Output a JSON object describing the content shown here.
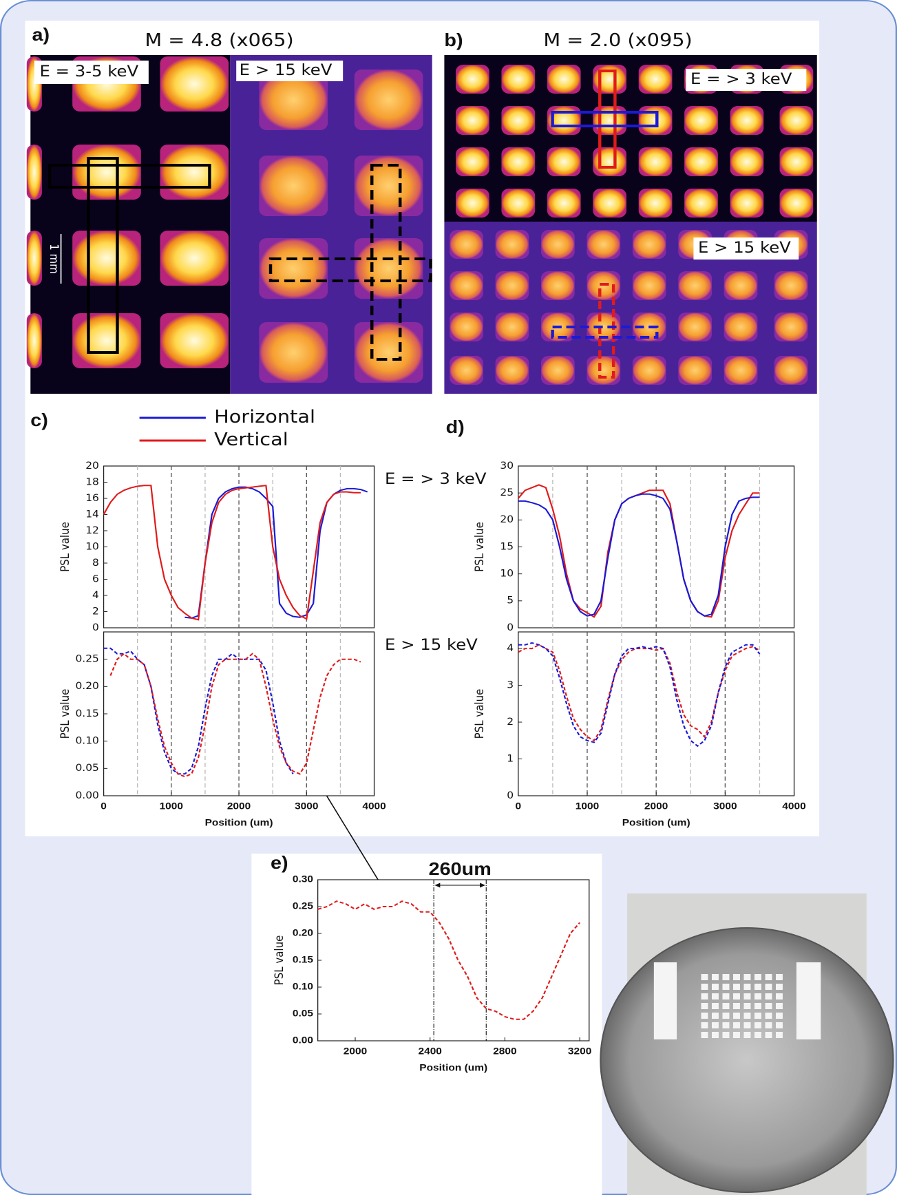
{
  "panels": {
    "a": {
      "label": "a)",
      "title": "M = 4.8 (x065)",
      "left_energy": "E = 3-5 keV",
      "right_energy": "E > 15 keV",
      "scale": "1 mm"
    },
    "b": {
      "label": "b)",
      "title": "M = 2.0 (x095)",
      "top_energy": "E = > 3 keV",
      "bottom_energy": "E > 15 keV"
    },
    "c": {
      "label": "c)"
    },
    "d": {
      "label": "d)"
    },
    "e": {
      "label": "e)"
    }
  },
  "chart_data": [
    {
      "type": "line",
      "ylabel": "PSL value",
      "annotation": "E = > 3 keV",
      "x": [
        0,
        100,
        200,
        300,
        400,
        500,
        600,
        700,
        800,
        900,
        1000,
        1100,
        1200,
        1300,
        1400,
        1500,
        1600,
        1700,
        1800,
        1900,
        2000,
        2100,
        2200,
        2300,
        2400,
        2500,
        2600,
        2700,
        2800,
        2900,
        3000,
        3100,
        3200,
        3300,
        3400,
        3500,
        3600,
        3700,
        3800,
        3900
      ],
      "xlim": [
        0,
        4000
      ],
      "ylim": [
        0,
        20
      ],
      "yticks": [
        0,
        2,
        4,
        6,
        8,
        10,
        12,
        14,
        16,
        18,
        20
      ],
      "vlines": [
        500,
        1000,
        1500,
        2000,
        2500,
        3000,
        3500
      ],
      "series": [
        {
          "name": "Horizontal",
          "color": "#1a1ad8",
          "values": [
            null,
            null,
            null,
            null,
            null,
            null,
            null,
            null,
            null,
            null,
            null,
            null,
            1.3,
            1.2,
            1.5,
            8,
            14,
            16,
            16.8,
            17.2,
            17.4,
            17.4,
            17.2,
            16.8,
            16,
            15,
            3,
            1.8,
            1.4,
            1.3,
            1.6,
            3,
            12,
            15.5,
            16.5,
            17,
            17.2,
            17.2,
            17.1,
            16.8
          ]
        },
        {
          "name": "Vertical",
          "color": "#e01b1b",
          "values": [
            14,
            15.5,
            16.5,
            17,
            17.3,
            17.5,
            17.6,
            17.6,
            10,
            6,
            4,
            2.5,
            1.8,
            1.2,
            1,
            8,
            13,
            15.5,
            16.5,
            17,
            17.2,
            17.3,
            17.4,
            17.5,
            17.6,
            10,
            6,
            4,
            2.5,
            1.5,
            1.1,
            7,
            13,
            15.5,
            16.5,
            16.8,
            16.8,
            16.7,
            16.7,
            null
          ]
        }
      ]
    },
    {
      "type": "line",
      "ylabel": "PSL value",
      "xlabel": "Position (um)",
      "annotation": "E > 15 keV",
      "x": [
        0,
        100,
        200,
        300,
        400,
        500,
        600,
        700,
        800,
        900,
        1000,
        1100,
        1200,
        1300,
        1400,
        1500,
        1600,
        1700,
        1800,
        1900,
        2000,
        2100,
        2200,
        2300,
        2400,
        2500,
        2600,
        2700,
        2800,
        2900,
        3000,
        3100,
        3200,
        3300,
        3400,
        3500,
        3600,
        3700,
        3800,
        3900
      ],
      "xlim": [
        0,
        4000
      ],
      "ylim": [
        0,
        0.3
      ],
      "yticks": [
        {
          "value": 0,
          "label": "0.00"
        },
        0.05,
        {
          "value": 0.1,
          "label": "0.10"
        },
        0.15,
        {
          "value": 0.2,
          "label": "0.20"
        },
        0.25
      ],
      "xticks": [
        0,
        1000,
        2000,
        3000,
        4000
      ],
      "vlines": [
        500,
        1000,
        1500,
        2000,
        2500,
        3000,
        3500
      ],
      "series": [
        {
          "color": "#1a1ad8",
          "dash": true,
          "values": [
            0.27,
            0.27,
            0.26,
            0.26,
            0.265,
            0.25,
            0.24,
            0.2,
            0.13,
            0.08,
            0.05,
            0.04,
            0.04,
            0.05,
            0.09,
            0.16,
            0.22,
            0.25,
            0.25,
            0.26,
            0.25,
            0.25,
            0.25,
            0.25,
            0.23,
            0.17,
            0.1,
            0.06,
            0.04,
            null,
            null,
            null,
            null,
            null,
            null,
            null,
            null,
            null,
            null,
            null
          ]
        },
        {
          "color": "#e01b1b",
          "dash": true,
          "values": [
            null,
            0.22,
            0.25,
            0.26,
            0.25,
            0.25,
            0.24,
            0.2,
            0.14,
            0.09,
            0.06,
            0.04,
            0.035,
            0.04,
            0.07,
            0.13,
            0.2,
            0.24,
            0.25,
            0.25,
            0.25,
            0.25,
            0.26,
            0.25,
            0.2,
            0.14,
            0.09,
            0.06,
            0.045,
            0.04,
            0.06,
            0.12,
            0.18,
            0.22,
            0.24,
            0.25,
            0.25,
            0.25,
            0.245,
            null
          ]
        }
      ]
    },
    {
      "type": "line",
      "ylabel": "PSL value",
      "x": [
        0,
        100,
        200,
        300,
        400,
        500,
        600,
        700,
        800,
        900,
        1000,
        1100,
        1200,
        1300,
        1400,
        1500,
        1600,
        1700,
        1800,
        1900,
        2000,
        2100,
        2200,
        2300,
        2400,
        2500,
        2600,
        2700,
        2800,
        2900,
        3000,
        3100,
        3200,
        3300,
        3400,
        3500
      ],
      "xlim": [
        0,
        4000
      ],
      "ylim": [
        0,
        30
      ],
      "yticks": [
        0,
        5,
        10,
        15,
        20,
        25,
        30
      ],
      "vlines": [
        500,
        1000,
        1500,
        2000,
        2500,
        3000,
        3500
      ],
      "series": [
        {
          "color": "#e01b1b",
          "values": [
            24,
            25.5,
            26,
            26.5,
            26,
            22,
            17,
            10,
            5,
            3.5,
            2.8,
            2,
            4,
            14,
            20,
            23,
            24,
            24.5,
            25,
            25.5,
            25.5,
            25.5,
            23,
            16,
            9,
            5,
            3,
            2.2,
            2,
            5,
            13,
            18,
            21,
            23,
            25,
            25
          ]
        },
        {
          "color": "#1a1ad8",
          "values": [
            23.5,
            23.5,
            23.2,
            22.8,
            22,
            20,
            15,
            9,
            5,
            3,
            2.2,
            2.5,
            5,
            13,
            20,
            23,
            24,
            24.5,
            24.8,
            24.8,
            24.5,
            24,
            22,
            16,
            9,
            5,
            3,
            2.2,
            2.5,
            6,
            15,
            21,
            23.5,
            24,
            24.2,
            24.2
          ]
        }
      ]
    },
    {
      "type": "line",
      "ylabel": "PSL value",
      "xlabel": "Position (um)",
      "x": [
        0,
        100,
        200,
        300,
        400,
        500,
        600,
        700,
        800,
        900,
        1000,
        1100,
        1200,
        1300,
        1400,
        1500,
        1600,
        1700,
        1800,
        1900,
        2000,
        2100,
        2200,
        2300,
        2400,
        2500,
        2600,
        2700,
        2800,
        2900,
        3000,
        3100,
        3200,
        3300,
        3400,
        3500
      ],
      "xlim": [
        0,
        4000
      ],
      "ylim": [
        0,
        4.45
      ],
      "yticks": [
        0,
        1,
        2,
        3,
        4
      ],
      "xticks": [
        0,
        1000,
        2000,
        3000,
        4000
      ],
      "vlines": [
        500,
        1000,
        1500,
        2000,
        2500,
        3000,
        3500
      ],
      "series": [
        {
          "color": "#e01b1b",
          "dash": true,
          "values": [
            3.9,
            4,
            4,
            4.1,
            4,
            3.9,
            3.4,
            2.7,
            2.1,
            1.8,
            1.6,
            1.5,
            1.8,
            2.6,
            3.3,
            3.7,
            3.9,
            4,
            4,
            4,
            3.95,
            4,
            3.6,
            2.8,
            2.2,
            1.9,
            1.8,
            1.6,
            2,
            2.8,
            3.4,
            3.8,
            3.9,
            4,
            4.05,
            3.95
          ]
        },
        {
          "color": "#1a1ad8",
          "dash": true,
          "values": [
            4.1,
            4.1,
            4.15,
            4.1,
            4,
            3.8,
            3.2,
            2.5,
            1.9,
            1.6,
            1.5,
            1.45,
            1.7,
            2.5,
            3.3,
            3.8,
            4,
            4,
            4.05,
            4,
            4.05,
            4,
            3.5,
            2.6,
            1.9,
            1.5,
            1.35,
            1.5,
            1.9,
            2.8,
            3.5,
            3.9,
            4,
            4.1,
            4.1,
            3.85
          ]
        }
      ]
    },
    {
      "type": "line",
      "ylabel": "PSL value",
      "xlabel": "Position (um)",
      "annotation": "260um",
      "x": [
        1800,
        1850,
        1900,
        1950,
        2000,
        2050,
        2100,
        2150,
        2200,
        2250,
        2300,
        2350,
        2400,
        2450,
        2500,
        2550,
        2600,
        2650,
        2700,
        2750,
        2800,
        2850,
        2900,
        2950,
        3000,
        3050,
        3100,
        3150,
        3200
      ],
      "xlim": [
        1800,
        3250
      ],
      "ylim": [
        0,
        0.3
      ],
      "yticks": [
        {
          "value": 0,
          "label": "0.00"
        },
        0.05,
        {
          "value": 0.1,
          "label": "0.10"
        },
        0.15,
        {
          "value": 0.2,
          "label": "0.20"
        },
        0.25,
        {
          "value": 0.3,
          "label": "0.30"
        }
      ],
      "xticks": [
        2000,
        2400,
        2800,
        3200
      ],
      "vlines": [
        2420,
        2700
      ],
      "series": [
        {
          "color": "#e01b1b",
          "dash": true,
          "values": [
            0.245,
            0.25,
            0.26,
            0.255,
            0.245,
            0.255,
            0.245,
            0.25,
            0.25,
            0.26,
            0.255,
            0.24,
            0.24,
            0.22,
            0.19,
            0.15,
            0.12,
            0.08,
            0.06,
            0.055,
            0.045,
            0.04,
            0.04,
            0.055,
            0.08,
            0.12,
            0.16,
            0.2,
            0.22
          ]
        }
      ]
    }
  ]
}
